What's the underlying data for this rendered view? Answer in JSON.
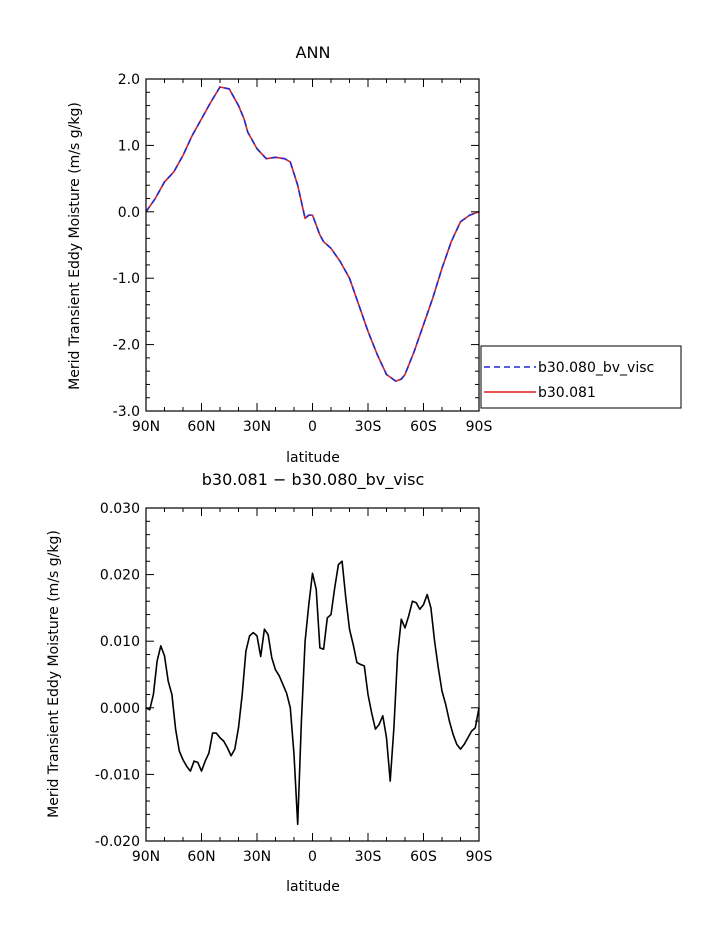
{
  "chart_data": [
    {
      "type": "line",
      "title": "ANN",
      "xlabel": "latitude",
      "ylabel": "Merid Transient Eddy Moisture (m/s g/kg)",
      "xlim": [
        90,
        -90
      ],
      "ylim": [
        -3.0,
        2.0
      ],
      "x_ticks": [
        90,
        60,
        30,
        0,
        -30,
        -60,
        -90
      ],
      "x_tick_labels": [
        "90N",
        "60N",
        "30N",
        "0",
        "30S",
        "60S",
        "90S"
      ],
      "y_ticks": [
        -3.0,
        -2.0,
        -1.0,
        0.0,
        1.0,
        2.0
      ],
      "y_tick_labels": [
        "-3.0",
        "-2.0",
        "-1.0",
        "0.0",
        "1.0",
        "2.0"
      ],
      "legend": "right",
      "x": [
        90,
        85,
        80,
        75,
        70,
        65,
        60,
        55,
        50,
        45,
        40,
        37,
        35,
        30,
        25,
        20,
        15,
        12,
        8,
        6,
        4,
        2,
        0,
        -2,
        -4,
        -6,
        -8,
        -10,
        -15,
        -20,
        -25,
        -30,
        -35,
        -40,
        -45,
        -48,
        -50,
        -55,
        -60,
        -65,
        -70,
        -75,
        -80,
        -85,
        -90
      ],
      "series": [
        {
          "name": "b30.080_bv_visc",
          "color": "#1f2bd6",
          "dash": "dashed",
          "values": [
            0.0,
            0.2,
            0.45,
            0.6,
            0.85,
            1.15,
            1.4,
            1.65,
            1.88,
            1.85,
            1.6,
            1.4,
            1.2,
            0.95,
            0.8,
            0.82,
            0.8,
            0.75,
            0.4,
            0.15,
            -0.1,
            -0.05,
            -0.05,
            -0.2,
            -0.35,
            -0.45,
            -0.5,
            -0.55,
            -0.75,
            -1.0,
            -1.4,
            -1.8,
            -2.15,
            -2.45,
            -2.55,
            -2.52,
            -2.45,
            -2.1,
            -1.7,
            -1.3,
            -0.85,
            -0.45,
            -0.15,
            -0.05,
            0.0
          ]
        },
        {
          "name": "b30.081",
          "color": "#e02020",
          "dash": "solid",
          "values": [
            0.0,
            0.2,
            0.45,
            0.6,
            0.85,
            1.15,
            1.4,
            1.65,
            1.88,
            1.85,
            1.6,
            1.4,
            1.2,
            0.95,
            0.8,
            0.82,
            0.8,
            0.75,
            0.4,
            0.15,
            -0.1,
            -0.05,
            -0.05,
            -0.2,
            -0.35,
            -0.45,
            -0.5,
            -0.55,
            -0.75,
            -1.0,
            -1.4,
            -1.8,
            -2.15,
            -2.45,
            -2.55,
            -2.52,
            -2.45,
            -2.1,
            -1.7,
            -1.3,
            -0.85,
            -0.45,
            -0.15,
            -0.05,
            0.0
          ]
        }
      ]
    },
    {
      "type": "line",
      "title": "b30.081 − b30.080_bv_visc",
      "xlabel": "latitude",
      "ylabel": "Merid Transient Eddy Moisture (m/s g/kg)",
      "xlim": [
        90,
        -90
      ],
      "ylim": [
        -0.02,
        0.03
      ],
      "x_ticks": [
        90,
        60,
        30,
        0,
        -30,
        -60,
        -90
      ],
      "x_tick_labels": [
        "90N",
        "60N",
        "30N",
        "0",
        "30S",
        "60S",
        "90S"
      ],
      "y_ticks": [
        -0.02,
        -0.01,
        0.0,
        0.01,
        0.02,
        0.03
      ],
      "y_tick_labels": [
        "-0.020",
        "-0.010",
        "0.000",
        "0.010",
        "0.020",
        "0.030"
      ],
      "x": [
        90,
        88,
        86,
        84,
        82,
        80,
        78,
        76,
        74,
        72,
        70,
        68,
        66,
        64,
        62,
        60,
        58,
        56,
        54,
        52,
        50,
        48,
        46,
        44,
        42,
        40,
        38,
        36,
        34,
        32,
        30,
        28,
        26,
        24,
        22,
        20,
        18,
        16,
        14,
        12,
        10,
        8,
        6,
        4,
        2,
        0,
        -2,
        -4,
        -6,
        -8,
        -10,
        -12,
        -14,
        -16,
        -18,
        -20,
        -22,
        -24,
        -26,
        -28,
        -30,
        -32,
        -34,
        -36,
        -38,
        -40,
        -42,
        -44,
        -46,
        -48,
        -50,
        -52,
        -54,
        -56,
        -58,
        -60,
        -62,
        -64,
        -66,
        -68,
        -70,
        -72,
        -74,
        -76,
        -78,
        -80,
        -82,
        -84,
        -86,
        -88,
        -90
      ],
      "series": [
        {
          "name": "",
          "color": "#000000",
          "dash": "solid",
          "values": [
            0.0,
            -0.0003,
            0.002,
            0.007,
            0.0093,
            0.0078,
            0.004,
            0.002,
            -0.0032,
            -0.0065,
            -0.0078,
            -0.0088,
            -0.0095,
            -0.008,
            -0.0082,
            -0.0095,
            -0.008,
            -0.0068,
            -0.0038,
            -0.0038,
            -0.0045,
            -0.005,
            -0.006,
            -0.0072,
            -0.0062,
            -0.003,
            0.002,
            0.0085,
            0.0108,
            0.0113,
            0.0108,
            0.0077,
            0.0118,
            0.011,
            0.0075,
            0.0057,
            0.0048,
            0.0035,
            0.0022,
            0.0,
            -0.007,
            -0.0175,
            -0.002,
            0.01,
            0.0155,
            0.0202,
            0.0178,
            0.009,
            0.0088,
            0.0135,
            0.014,
            0.018,
            0.0215,
            0.022,
            0.0165,
            0.0118,
            0.0095,
            0.0068,
            0.0065,
            0.0063,
            0.002,
            -0.0008,
            -0.0032,
            -0.0025,
            -0.0012,
            -0.0045,
            -0.011,
            -0.003,
            0.008,
            0.0133,
            0.012,
            0.0138,
            0.016,
            0.0158,
            0.0148,
            0.0155,
            0.017,
            0.015,
            0.01,
            0.006,
            0.0025,
            0.0005,
            -0.002,
            -0.004,
            -0.0055,
            -0.0062,
            -0.0055,
            -0.0045,
            -0.0035,
            -0.003,
            0.0
          ]
        }
      ]
    }
  ]
}
